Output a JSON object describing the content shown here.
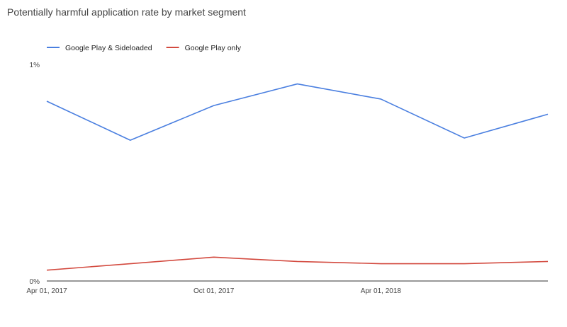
{
  "chart_data": {
    "type": "line",
    "title": "Potentially harmful application rate by market segment",
    "xlabel": "",
    "ylabel": "",
    "x_tick_labels": [
      "Apr 01, 2017",
      "Oct 01, 2017",
      "Apr 01, 2018"
    ],
    "y_tick_labels": [
      "1%",
      "0%"
    ],
    "ylim": [
      0,
      1
    ],
    "y_unit": "percent",
    "x": [
      "2017-04-01",
      "2017-07-01",
      "2017-10-01",
      "2018-01-01",
      "2018-04-01",
      "2018-07-01",
      "2018-10-01"
    ],
    "series": [
      {
        "name": "Google Play & Sideloaded",
        "color": "#4a7fe0",
        "values": [
          0.83,
          0.65,
          0.81,
          0.91,
          0.84,
          0.66,
          0.77
        ]
      },
      {
        "name": "Google Play only",
        "color": "#d34a3f",
        "values": [
          0.05,
          0.08,
          0.11,
          0.09,
          0.08,
          0.08,
          0.09
        ]
      }
    ],
    "legend_position": "top-left",
    "grid": false
  }
}
